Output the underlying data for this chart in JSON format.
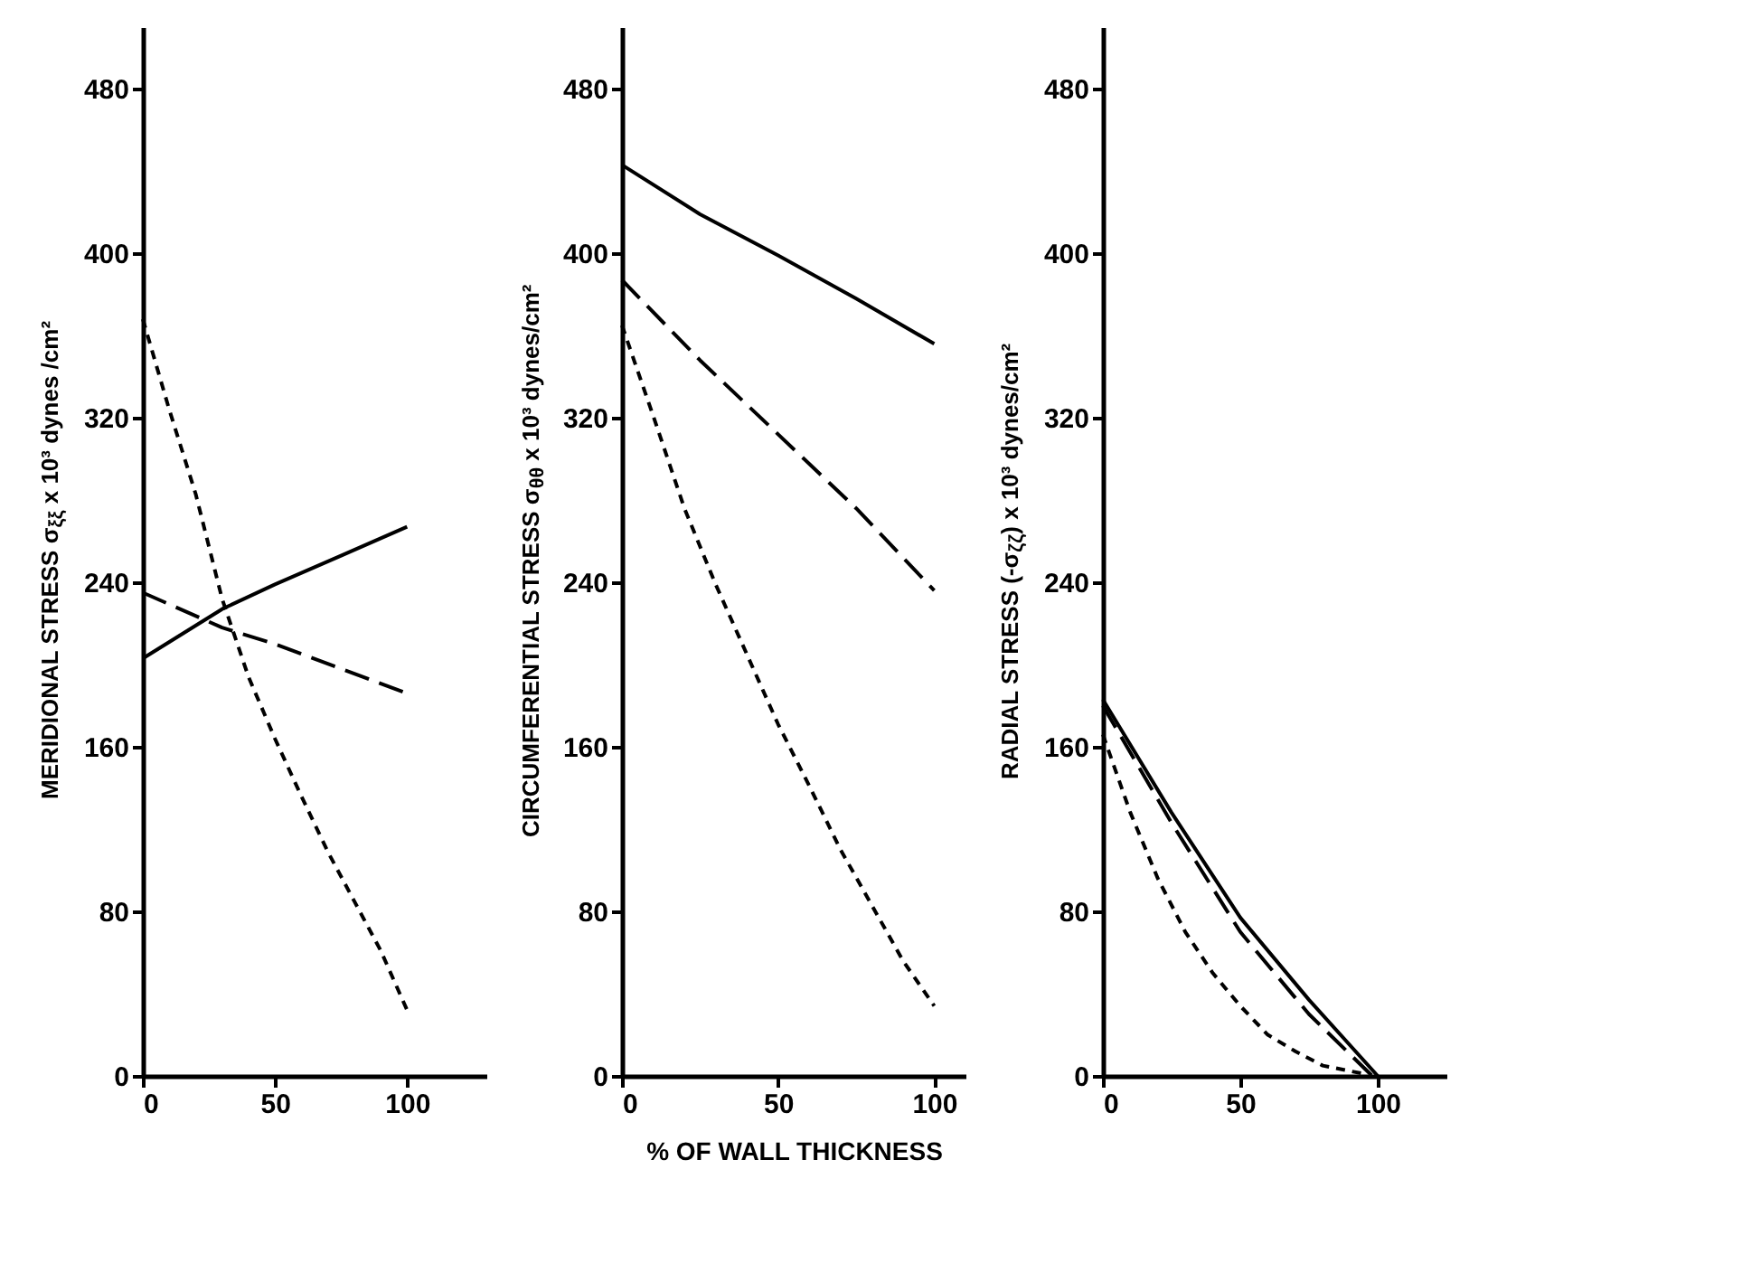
{
  "chart_data": [
    {
      "type": "line",
      "ylabel": "MERIDIONAL STRESS σ$_{ξξ}$ x 10³  dynes /cm²",
      "xlim": [
        0,
        130
      ],
      "xticks": [
        0,
        50,
        100
      ],
      "ylim": [
        0,
        510
      ],
      "yticks": [
        0,
        80,
        160,
        240,
        320,
        400,
        480
      ],
      "series": [
        {
          "color": "#000000",
          "line_style": "solid",
          "x": [
            0,
            30,
            50,
            75,
            100
          ],
          "values": [
            203,
            227,
            239,
            253,
            267
          ]
        },
        {
          "color": "#000000",
          "line_style": "dashed",
          "x": [
            0,
            30,
            50,
            75,
            100
          ],
          "values": [
            235,
            218,
            210,
            198,
            186
          ]
        },
        {
          "color": "#000000",
          "line_style": "dotted",
          "x": [
            0,
            10,
            20,
            30,
            40,
            50,
            60,
            70,
            80,
            90,
            100
          ],
          "values": [
            368,
            324,
            283,
            232,
            194,
            164,
            136,
            109,
            85,
            61,
            32
          ]
        }
      ]
    },
    {
      "type": "line",
      "ylabel": "CIRCUMFERENTIAL STRESS σ$_{θθ}$ x 10³ dynes/cm²",
      "xlabel": "% OF WALL THICKNESS",
      "xlim": [
        0,
        110
      ],
      "xticks": [
        0,
        50,
        100
      ],
      "ylim": [
        0,
        510
      ],
      "yticks": [
        0,
        80,
        160,
        240,
        320,
        400,
        480
      ],
      "series": [
        {
          "color": "#000000",
          "line_style": "solid",
          "x": [
            0,
            25,
            50,
            75,
            100
          ],
          "values": [
            443,
            419,
            399,
            378,
            356
          ]
        },
        {
          "color": "#000000",
          "line_style": "dashed",
          "x": [
            0,
            25,
            50,
            75,
            100
          ],
          "values": [
            387,
            348,
            312,
            276,
            236
          ]
        },
        {
          "color": "#000000",
          "line_style": "dotted",
          "x": [
            0,
            10,
            20,
            30,
            40,
            50,
            60,
            70,
            80,
            90,
            100
          ],
          "values": [
            365,
            321,
            276,
            239,
            205,
            171,
            141,
            110,
            83,
            56,
            34
          ]
        }
      ]
    },
    {
      "type": "line",
      "ylabel": "RADIAL STRESS (-σ$_{ζζ}$) x 10³ dynes/cm²",
      "xlim": [
        0,
        125
      ],
      "xticks": [
        0,
        50,
        100
      ],
      "ylim": [
        0,
        510
      ],
      "yticks": [
        0,
        80,
        160,
        240,
        320,
        400,
        480
      ],
      "series": [
        {
          "color": "#000000",
          "line_style": "solid",
          "x": [
            0,
            25,
            50,
            75,
            100
          ],
          "values": [
            183,
            128,
            77,
            37,
            0
          ]
        },
        {
          "color": "#000000",
          "line_style": "dashed",
          "x": [
            0,
            25,
            50,
            75,
            98
          ],
          "values": [
            180,
            123,
            70,
            30,
            0
          ]
        },
        {
          "color": "#000000",
          "line_style": "dotted",
          "x": [
            0,
            10,
            20,
            30,
            40,
            50,
            60,
            70,
            80,
            95
          ],
          "values": [
            166,
            128,
            96,
            70,
            50,
            34,
            20,
            12,
            5,
            1
          ]
        }
      ]
    }
  ]
}
